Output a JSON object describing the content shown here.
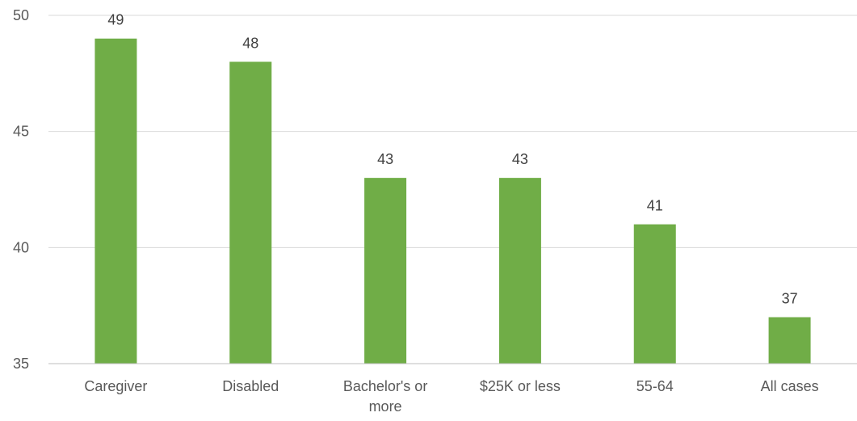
{
  "chart_data": {
    "type": "bar",
    "categories": [
      "Caregiver",
      "Disabled",
      "Bachelor's or more",
      "$25K or less",
      "55-64",
      "All cases"
    ],
    "category_label_lines": [
      [
        "Caregiver"
      ],
      [
        "Disabled"
      ],
      [
        "Bachelor's or",
        "more"
      ],
      [
        "$25K or less"
      ],
      [
        "55-64"
      ],
      [
        "All cases"
      ]
    ],
    "values": [
      49,
      48,
      43,
      43,
      41,
      37
    ],
    "data_labels": [
      "49",
      "48",
      "43",
      "43",
      "41",
      "37"
    ],
    "ylim": [
      35,
      50
    ],
    "yticks": [
      35,
      40,
      45,
      50
    ],
    "ytick_labels": [
      "35",
      "40",
      "45",
      "50"
    ],
    "title": "",
    "xlabel": "",
    "ylabel": "",
    "grid": true,
    "legend": "none",
    "bar_color": "#70ad47"
  }
}
